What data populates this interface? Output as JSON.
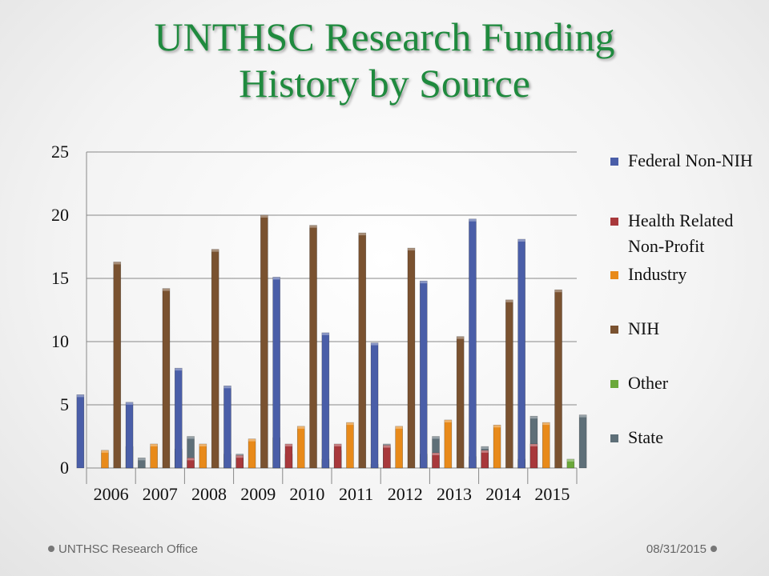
{
  "slide": {
    "title_line1": "UNTHSC Research Funding",
    "title_line2": "History by Source",
    "footer_left": "UNTHSC Research Office",
    "footer_right": "08/31/2015"
  },
  "chart_data": {
    "type": "bar",
    "title": "UNTHSC Research Funding History by Source",
    "xlabel": "",
    "ylabel": "",
    "ylim": [
      0,
      25
    ],
    "yticks": [
      0,
      5,
      10,
      15,
      20,
      25
    ],
    "grid": true,
    "legend_position": "right",
    "categories": [
      "2006",
      "2007",
      "2008",
      "2009",
      "2010",
      "2011",
      "2012",
      "2013",
      "2014",
      "2015"
    ],
    "series": [
      {
        "name": "Federal Non-NIH",
        "color": "#4a5ea8",
        "values": [
          5.8,
          5.2,
          7.9,
          6.5,
          15.1,
          10.7,
          9.9,
          14.8,
          19.7,
          18.1
        ]
      },
      {
        "name": "Health Related Non-Profit",
        "color": "#a8383b",
        "values": [
          0.0,
          0.0,
          0.8,
          1.0,
          1.9,
          1.9,
          1.8,
          1.2,
          1.4,
          1.9
        ]
      },
      {
        "name": "Industry",
        "color": "#e88a1a",
        "values": [
          1.4,
          1.9,
          1.9,
          2.3,
          3.3,
          3.6,
          3.3,
          3.8,
          3.4,
          3.6
        ]
      },
      {
        "name": "NIH",
        "color": "#7a5230",
        "values": [
          16.3,
          14.2,
          17.3,
          20.0,
          19.2,
          18.6,
          17.4,
          10.4,
          13.3,
          14.1
        ]
      },
      {
        "name": "Other",
        "color": "#6aa83a",
        "values": [
          1.7,
          1.5,
          1.1,
          2.4,
          0.7,
          0.3,
          1.1,
          0.9,
          0.7,
          0.7
        ]
      },
      {
        "name": "State",
        "color": "#5e6f78",
        "values": [
          0.8,
          2.5,
          1.1,
          1.1,
          1.4,
          1.9,
          2.5,
          1.7,
          4.1,
          4.2
        ]
      }
    ]
  }
}
